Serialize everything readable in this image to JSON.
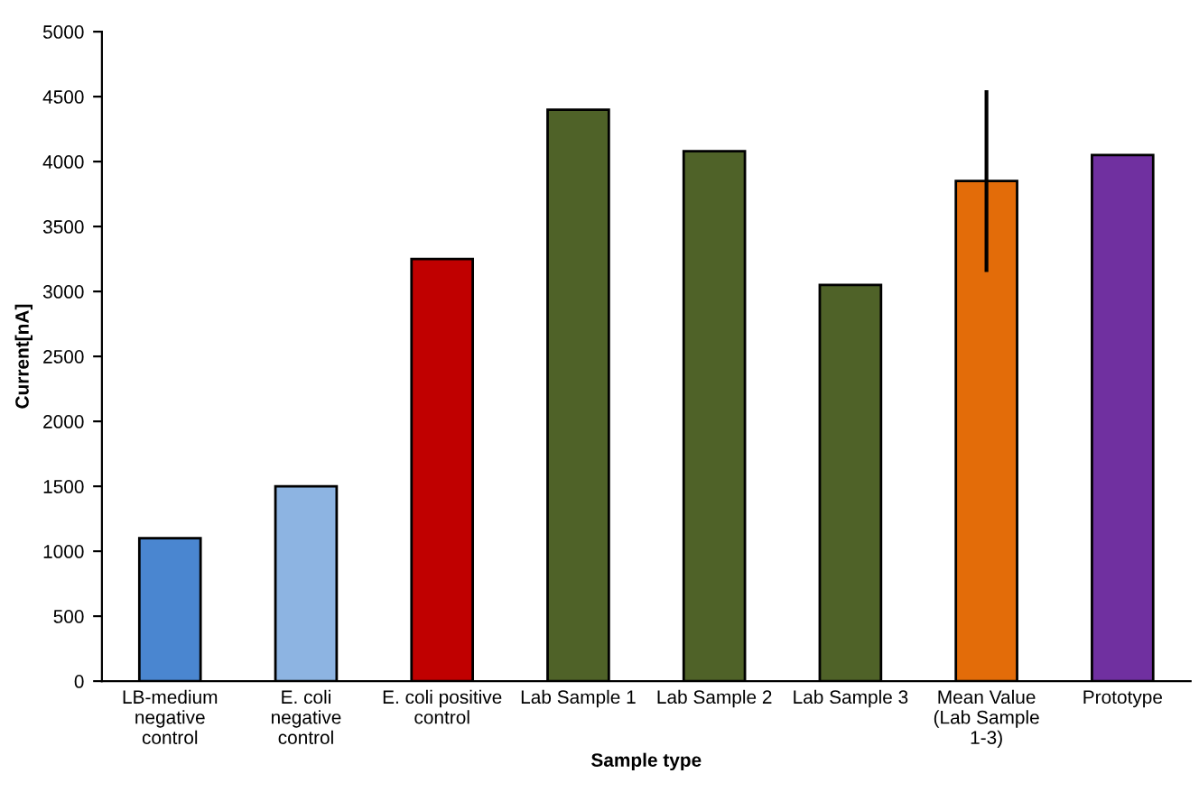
{
  "chart_data": {
    "type": "bar",
    "xlabel": "Sample type",
    "ylabel": "Current[nA]",
    "categories": [
      "LB-medium\nnegative\ncontrol",
      "E. coli\nnegative\ncontrol",
      "E. coli positive\ncontrol",
      "Lab Sample 1",
      "Lab Sample 2",
      "Lab Sample 3",
      "Mean Value\n(Lab Sample\n1-3)",
      "Prototype"
    ],
    "values": [
      1100,
      1500,
      3250,
      4400,
      4080,
      3050,
      3850,
      4050
    ],
    "colors": [
      "#4a86d0",
      "#8db4e2",
      "#c00000",
      "#4f6228",
      "#4f6228",
      "#4f6228",
      "#e36c09",
      "#7030a0"
    ],
    "errors": [
      null,
      null,
      null,
      null,
      null,
      null,
      700,
      null
    ],
    "ylim": [
      0,
      5000
    ],
    "yticks": [
      0,
      500,
      1000,
      1500,
      2000,
      2500,
      3000,
      3500,
      4000,
      4500,
      5000
    ],
    "grid": false,
    "legend": false
  }
}
